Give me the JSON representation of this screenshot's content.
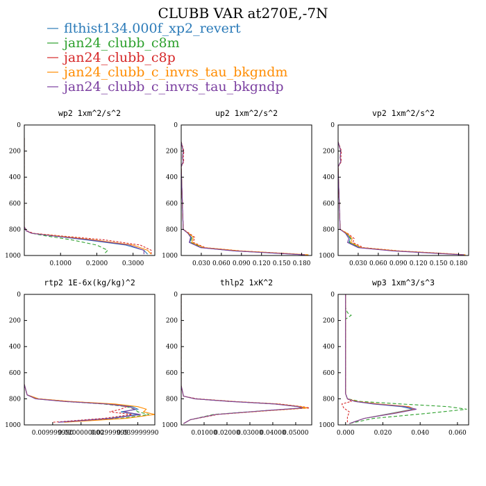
{
  "title": "CLUBB VAR at270E,-7N",
  "legend": [
    {
      "name": "flthist134.000f_xp2_revert",
      "color": "#2a7ab8"
    },
    {
      "name": "jan24_clubb_c8m",
      "color": "#2ca02c"
    },
    {
      "name": "jan24_clubb_c8p",
      "color": "#d62728"
    },
    {
      "name": "jan24_clubb_c_invrs_tau_bkgndm",
      "color": "#ff8c00"
    },
    {
      "name": "jan24_clubb_c_invrs_tau_bkgndp",
      "color": "#7b3fa0"
    }
  ],
  "chart_data": [
    {
      "type": "line",
      "title": "wp2  1xm^2/s^2",
      "xlim": [
        0,
        0.36
      ],
      "ylim": [
        1000,
        0
      ],
      "xticks": [
        "0.1000",
        "0.2000",
        "0.3000"
      ],
      "xtick_values": [
        0.1,
        0.2,
        0.3
      ],
      "yticks": [
        "0",
        "200",
        "400",
        "600",
        "800",
        "1000"
      ],
      "ytick_values": [
        0,
        200,
        400,
        600,
        800,
        1000
      ],
      "series": [
        {
          "x": [
            0,
            0,
            0.005,
            0.02,
            0.08,
            0.17,
            0.28,
            0.33,
            0.34
          ],
          "y": [
            100,
            780,
            810,
            830,
            850,
            880,
            920,
            960,
            990
          ]
        },
        {
          "x": [
            0,
            0,
            0.005,
            0.02,
            0.06,
            0.13,
            0.2,
            0.23,
            0.22
          ],
          "y": [
            100,
            780,
            810,
            830,
            850,
            880,
            920,
            960,
            990
          ]
        },
        {
          "x": [
            0,
            0,
            0.006,
            0.025,
            0.1,
            0.22,
            0.32,
            0.35,
            0.35
          ],
          "y": [
            100,
            780,
            810,
            830,
            850,
            880,
            920,
            960,
            990
          ]
        },
        {
          "x": [
            0,
            0,
            0.005,
            0.02,
            0.09,
            0.19,
            0.3,
            0.34,
            0.35
          ],
          "y": [
            100,
            780,
            810,
            830,
            850,
            880,
            920,
            960,
            990
          ]
        },
        {
          "x": [
            0,
            0,
            0.005,
            0.02,
            0.08,
            0.18,
            0.29,
            0.33,
            0.33
          ],
          "y": [
            100,
            780,
            810,
            830,
            850,
            880,
            920,
            960,
            990
          ]
        }
      ]
    },
    {
      "type": "line",
      "title": "up2  1xm^2/s^2",
      "xlim": [
        0,
        0.195
      ],
      "ylim": [
        1000,
        0
      ],
      "xticks": [
        "0.030",
        "0.060",
        "0.090",
        "0.120",
        "0.150",
        "0.180"
      ],
      "xtick_values": [
        0.03,
        0.06,
        0.09,
        0.12,
        0.15,
        0.18
      ],
      "yticks": [
        "0",
        "200",
        "400",
        "600",
        "800",
        "1000"
      ],
      "ytick_values": [
        0,
        200,
        400,
        600,
        800,
        1000
      ],
      "series": [
        {
          "x": [
            0,
            0.003,
            0.002,
            0.003,
            0,
            0.003,
            0.01,
            0.015,
            0.013,
            0.03,
            0.08,
            0.15,
            0.185
          ],
          "y": [
            130,
            200,
            250,
            280,
            320,
            800,
            830,
            860,
            900,
            940,
            965,
            985,
            995
          ]
        },
        {
          "x": [
            0,
            0.003,
            0.002,
            0.003,
            0,
            0.003,
            0.01,
            0.016,
            0.014,
            0.032,
            0.085,
            0.155,
            0.19
          ],
          "y": [
            130,
            200,
            250,
            280,
            320,
            800,
            830,
            860,
            900,
            940,
            965,
            985,
            995
          ]
        },
        {
          "x": [
            0,
            0.004,
            0.003,
            0.004,
            0,
            0.003,
            0.012,
            0.02,
            0.018,
            0.036,
            0.09,
            0.16,
            0.19
          ],
          "y": [
            130,
            200,
            250,
            280,
            320,
            800,
            830,
            860,
            900,
            940,
            965,
            985,
            995
          ]
        },
        {
          "x": [
            0,
            0.003,
            0.002,
            0.003,
            0,
            0.003,
            0.011,
            0.018,
            0.016,
            0.034,
            0.088,
            0.158,
            0.19
          ],
          "y": [
            130,
            200,
            250,
            280,
            320,
            800,
            830,
            860,
            900,
            940,
            965,
            985,
            995
          ]
        },
        {
          "x": [
            0,
            0.003,
            0.002,
            0.003,
            0,
            0.003,
            0.01,
            0.014,
            0.012,
            0.029,
            0.08,
            0.15,
            0.185
          ],
          "y": [
            130,
            200,
            250,
            280,
            320,
            800,
            830,
            860,
            900,
            940,
            965,
            985,
            995
          ]
        }
      ]
    },
    {
      "type": "line",
      "title": "vp2  1xm^2/s^2",
      "xlim": [
        0,
        0.195
      ],
      "ylim": [
        1000,
        0
      ],
      "xticks": [
        "0.030",
        "0.060",
        "0.090",
        "0.120",
        "0.150",
        "0.180"
      ],
      "xtick_values": [
        0.03,
        0.06,
        0.09,
        0.12,
        0.15,
        0.18
      ],
      "yticks": [
        "0",
        "200",
        "400",
        "600",
        "800",
        "1000"
      ],
      "ytick_values": [
        0,
        200,
        400,
        600,
        800,
        1000
      ],
      "series": [
        {
          "x": [
            0,
            0.004,
            0.003,
            0.004,
            0,
            0.003,
            0.012,
            0.018,
            0.016,
            0.032,
            0.085,
            0.155,
            0.19
          ],
          "y": [
            130,
            200,
            250,
            280,
            320,
            800,
            830,
            870,
            900,
            940,
            965,
            985,
            995
          ]
        },
        {
          "x": [
            0,
            0.004,
            0.003,
            0.004,
            0,
            0.003,
            0.012,
            0.019,
            0.017,
            0.033,
            0.087,
            0.157,
            0.19
          ],
          "y": [
            130,
            200,
            250,
            280,
            320,
            800,
            830,
            870,
            900,
            940,
            965,
            985,
            995
          ]
        },
        {
          "x": [
            0,
            0.005,
            0.004,
            0.005,
            0,
            0.003,
            0.014,
            0.024,
            0.022,
            0.038,
            0.092,
            0.162,
            0.19
          ],
          "y": [
            130,
            200,
            250,
            280,
            320,
            800,
            830,
            870,
            900,
            940,
            965,
            985,
            995
          ]
        },
        {
          "x": [
            0,
            0.004,
            0.003,
            0.004,
            0,
            0.003,
            0.013,
            0.021,
            0.019,
            0.035,
            0.089,
            0.159,
            0.19
          ],
          "y": [
            130,
            200,
            250,
            280,
            320,
            800,
            830,
            870,
            900,
            940,
            965,
            985,
            995
          ]
        },
        {
          "x": [
            0,
            0.004,
            0.003,
            0.004,
            0,
            0.003,
            0.011,
            0.016,
            0.014,
            0.03,
            0.082,
            0.152,
            0.188
          ],
          "y": [
            130,
            200,
            250,
            280,
            320,
            800,
            830,
            870,
            900,
            940,
            965,
            985,
            995
          ]
        }
      ]
    },
    {
      "type": "line",
      "title": "rtp2  1E-6x(kg/kg)^2",
      "xlim": [
        0,
        0.046
      ],
      "ylim": [
        1000,
        0
      ],
      "xticks": [
        "0.009999990",
        "0.0200000000",
        "0.02999999",
        "0.039999990"
      ],
      "xtick_values": [
        0.01,
        0.02,
        0.03,
        0.04
      ],
      "yticks": [
        "0",
        "200",
        "400",
        "600",
        "800",
        "1000"
      ],
      "ytick_values": [
        0,
        200,
        400,
        600,
        800,
        1000
      ],
      "series": [
        {
          "x": [
            0,
            0.001,
            0.005,
            0.015,
            0.03,
            0.038,
            0.04,
            0.034,
            0.04,
            0.03,
            0.012
          ],
          "y": [
            690,
            770,
            800,
            820,
            840,
            860,
            880,
            900,
            920,
            950,
            980
          ]
        },
        {
          "x": [
            0,
            0.001,
            0.004,
            0.014,
            0.028,
            0.036,
            0.039,
            0.04,
            0.044,
            0.034,
            0.014
          ],
          "y": [
            690,
            770,
            800,
            820,
            840,
            860,
            880,
            900,
            920,
            950,
            980
          ]
        },
        {
          "x": [
            0,
            0.001,
            0.005,
            0.016,
            0.031,
            0.036,
            0.034,
            0.03,
            0.038,
            0.028,
            0.01
          ],
          "y": [
            690,
            770,
            800,
            820,
            840,
            860,
            880,
            900,
            920,
            950,
            980
          ]
        },
        {
          "x": [
            0,
            0.001,
            0.005,
            0.016,
            0.032,
            0.04,
            0.043,
            0.042,
            0.046,
            0.036,
            0.014
          ],
          "y": [
            690,
            770,
            800,
            820,
            840,
            860,
            880,
            900,
            920,
            950,
            980
          ]
        },
        {
          "x": [
            0,
            0.001,
            0.004,
            0.014,
            0.029,
            0.037,
            0.039,
            0.035,
            0.041,
            0.031,
            0.012
          ],
          "y": [
            690,
            770,
            800,
            820,
            840,
            860,
            880,
            900,
            920,
            950,
            980
          ]
        }
      ]
    },
    {
      "type": "line",
      "title": "thlp2  1xK^2",
      "xlim": [
        0,
        0.057
      ],
      "ylim": [
        1000,
        0
      ],
      "xticks": [
        "0.01000",
        "0.02000",
        "0.03000",
        "0.04000",
        "0.05000"
      ],
      "xtick_values": [
        0.01,
        0.02,
        0.03,
        0.04,
        0.05
      ],
      "yticks": [
        "0",
        "200",
        "400",
        "600",
        "800",
        "1000"
      ],
      "ytick_values": [
        0,
        200,
        400,
        600,
        800,
        1000
      ],
      "series": [
        {
          "x": [
            0,
            0,
            0.001,
            0.006,
            0.022,
            0.042,
            0.052,
            0.054,
            0.038,
            0.015,
            0.004,
            0.001
          ],
          "y": [
            0,
            700,
            780,
            800,
            820,
            840,
            860,
            870,
            890,
            920,
            960,
            990
          ]
        },
        {
          "x": [
            0,
            0,
            0.001,
            0.006,
            0.021,
            0.041,
            0.051,
            0.053,
            0.037,
            0.014,
            0.004,
            0.001
          ],
          "y": [
            0,
            700,
            780,
            800,
            820,
            840,
            860,
            870,
            890,
            920,
            960,
            990
          ]
        },
        {
          "x": [
            0,
            0,
            0.001,
            0.007,
            0.023,
            0.043,
            0.053,
            0.056,
            0.039,
            0.016,
            0.004,
            0.001
          ],
          "y": [
            0,
            700,
            780,
            800,
            820,
            840,
            860,
            870,
            890,
            920,
            960,
            990
          ]
        },
        {
          "x": [
            0,
            0,
            0.001,
            0.006,
            0.022,
            0.042,
            0.052,
            0.055,
            0.038,
            0.015,
            0.004,
            0.001
          ],
          "y": [
            0,
            700,
            780,
            800,
            820,
            840,
            860,
            870,
            890,
            920,
            960,
            990
          ]
        },
        {
          "x": [
            0,
            0,
            0.001,
            0.006,
            0.021,
            0.041,
            0.051,
            0.053,
            0.037,
            0.015,
            0.004,
            0.001
          ],
          "y": [
            0,
            700,
            780,
            800,
            820,
            840,
            860,
            870,
            890,
            920,
            960,
            990
          ]
        }
      ]
    },
    {
      "type": "line",
      "title": "wp3  1xm^3/s^3",
      "xlim": [
        -0.004,
        0.066
      ],
      "ylim": [
        1000,
        0
      ],
      "xticks": [
        "0.000",
        "0.020",
        "0.040",
        "0.060"
      ],
      "xtick_values": [
        0,
        0.02,
        0.04,
        0.06
      ],
      "yticks": [
        "0",
        "200",
        "400",
        "600",
        "800",
        "1000"
      ],
      "ytick_values": [
        0,
        200,
        400,
        600,
        800,
        1000
      ],
      "series": [
        {
          "x": [
            0,
            0,
            0.001,
            0.005,
            0.015,
            0.03,
            0.036,
            0.025,
            0.01,
            0.002
          ],
          "y": [
            0,
            760,
            800,
            820,
            840,
            860,
            880,
            910,
            950,
            990
          ]
        },
        {
          "x": [
            0,
            0,
            0.001,
            0.003,
            0,
            0,
            0.001,
            0.008,
            0.03,
            0.055,
            0.065,
            0.045,
            0.015,
            0.002
          ],
          "y": [
            0,
            100,
            140,
            160,
            190,
            760,
            800,
            820,
            840,
            860,
            880,
            910,
            950,
            990
          ]
        },
        {
          "x": [
            0,
            0,
            0.001,
            0.003,
            -0.002,
            -0.001,
            0.002,
            0.001,
            0.001
          ],
          "y": [
            0,
            760,
            800,
            820,
            840,
            870,
            900,
            940,
            990
          ]
        },
        {
          "x": [
            0,
            0,
            0.001,
            0.006,
            0.018,
            0.034,
            0.037,
            0.026,
            0.01,
            0.002
          ],
          "y": [
            0,
            760,
            800,
            820,
            840,
            860,
            880,
            910,
            950,
            990
          ]
        },
        {
          "x": [
            0,
            0,
            0.001,
            0.005,
            0.016,
            0.032,
            0.038,
            0.027,
            0.01,
            0.002
          ],
          "y": [
            0,
            760,
            800,
            820,
            840,
            860,
            880,
            910,
            950,
            990
          ]
        }
      ]
    }
  ]
}
